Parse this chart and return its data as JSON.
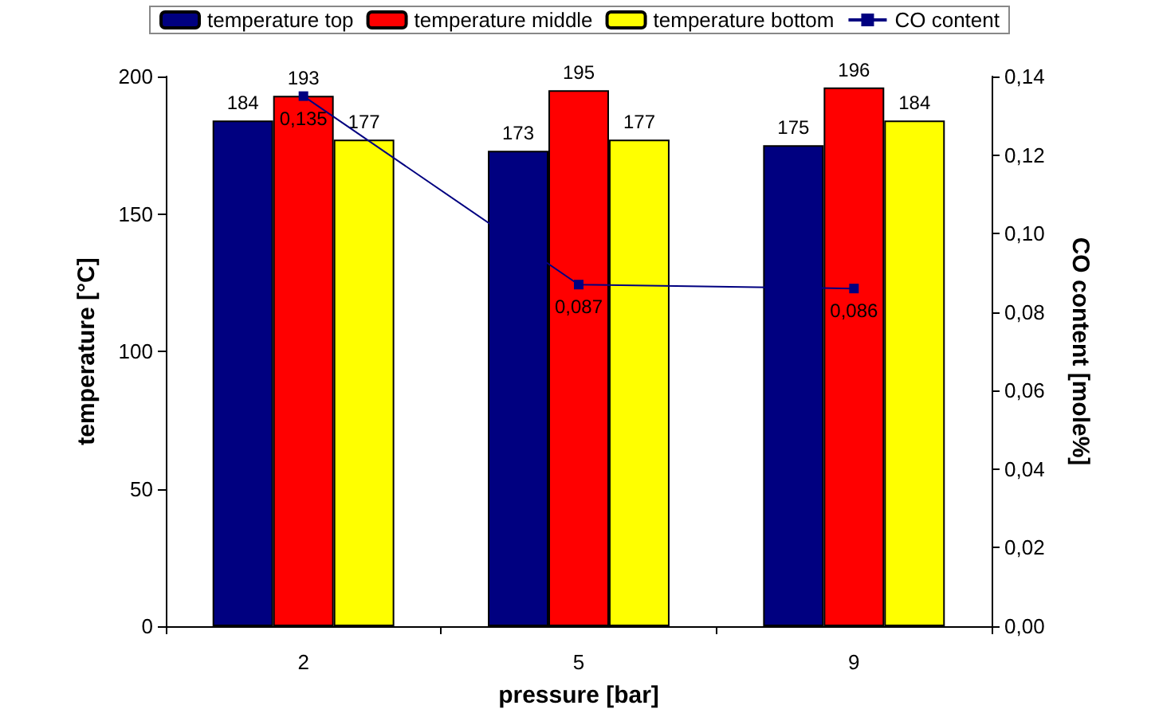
{
  "chart_data": {
    "type": "bar",
    "xlabel": "pressure [bar]",
    "ylabel": "temperature [°C]",
    "y2label": "CO content [mole%]",
    "categories": [
      "2",
      "5",
      "9"
    ],
    "series": [
      {
        "name": "temperature top",
        "color": "#000080",
        "values": [
          184,
          173,
          175
        ]
      },
      {
        "name": "temperature middle",
        "color": "#ff0000",
        "values": [
          193,
          195,
          196
        ]
      },
      {
        "name": "temperature bottom",
        "color": "#ffff00",
        "values": [
          177,
          177,
          184
        ]
      },
      {
        "name": "CO content",
        "type": "line",
        "axis": "y2",
        "color": "#000080",
        "marker": "square",
        "values": [
          0.135,
          0.087,
          0.086
        ],
        "value_labels": [
          "0,135",
          "0,087",
          "0,086"
        ]
      }
    ],
    "ylim": [
      0,
      200
    ],
    "yticks": [
      0,
      50,
      100,
      150,
      200
    ],
    "y2lim": [
      0,
      0.14
    ],
    "y2ticks": [
      {
        "value": 0,
        "label": "0,00"
      },
      {
        "value": 0.02,
        "label": "0,02"
      },
      {
        "value": 0.04,
        "label": "0,04"
      },
      {
        "value": 0.06,
        "label": "0,06"
      },
      {
        "value": 0.08,
        "label": "0,08"
      },
      {
        "value": 0.1,
        "label": "0,10"
      },
      {
        "value": 0.12,
        "label": "0,12"
      },
      {
        "value": 0.14,
        "label": "0,14"
      }
    ],
    "data_labels": true,
    "grid": false,
    "legend": "top"
  }
}
